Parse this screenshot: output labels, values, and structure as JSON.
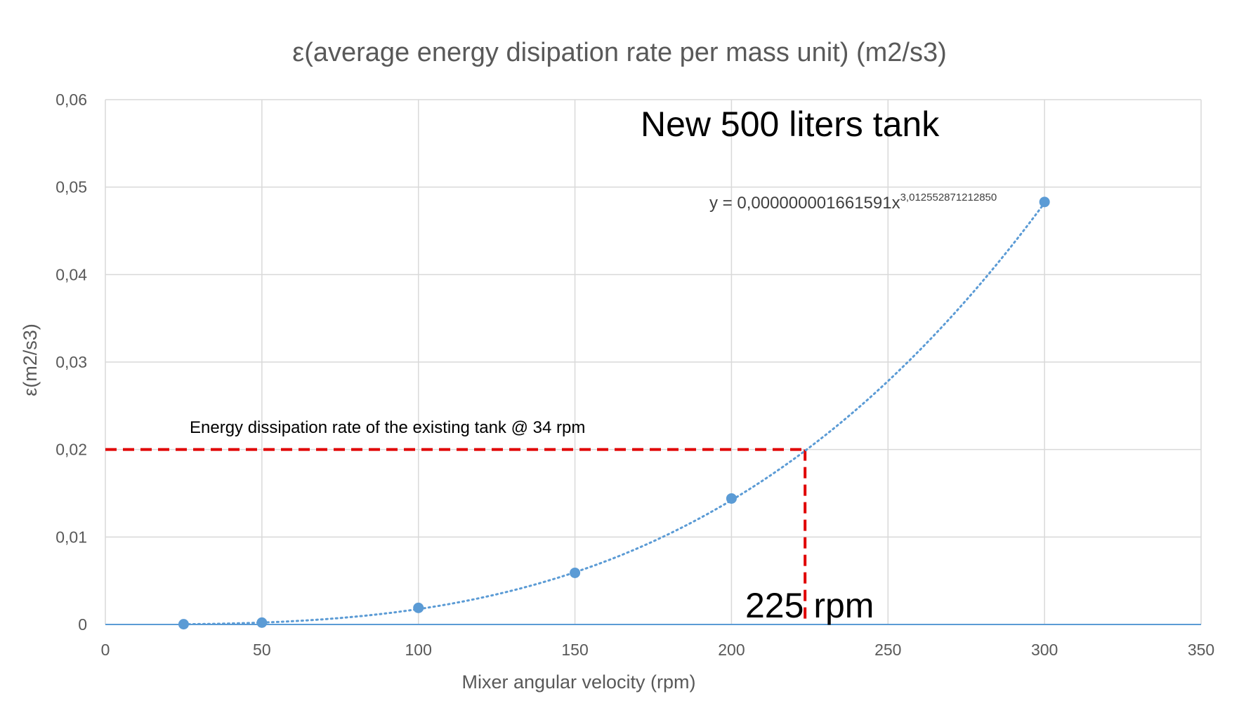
{
  "chart_data": {
    "type": "scatter",
    "title": "ε(average energy disipation rate per mass unit) (m2/s3)",
    "xlabel": "Mixer angular velocity (rpm)",
    "ylabel": "ε(m2/s3)",
    "xlim": [
      0,
      350
    ],
    "ylim": [
      0,
      0.06
    ],
    "x_ticks": [
      0,
      50,
      100,
      150,
      200,
      250,
      300,
      350
    ],
    "x_tick_labels": [
      "0",
      "50",
      "100",
      "150",
      "200",
      "250",
      "300",
      "350"
    ],
    "y_ticks": [
      0,
      0.01,
      0.02,
      0.03,
      0.04,
      0.05,
      0.06
    ],
    "y_tick_labels": [
      "0",
      "0,01",
      "0,02",
      "0,03",
      "0,04",
      "0,05",
      "0,06"
    ],
    "grid": true,
    "series": [
      {
        "x": [
          25,
          50,
          100,
          150,
          200,
          300
        ],
        "y": [
          3e-05,
          0.00021,
          0.0019,
          0.0059,
          0.0144,
          0.0483
        ],
        "color": "#5B9BD5"
      }
    ],
    "trendline": {
      "type": "power",
      "coefficient": 1.661591e-09,
      "exponent": 3.01255287121285,
      "x_range": [
        25,
        300
      ],
      "color": "#5B9BD5",
      "style": "dotted",
      "equation_prefix": "y = 0,000000001661591x",
      "equation_exponent": "3,012552871212850"
    },
    "annotations": {
      "tank_label": "New 500 liters tank",
      "reference_label": "Energy dissipation rate of the existing tank @ 34 rpm",
      "result_label": "225 rpm"
    },
    "reference_lines": {
      "y_value": 0.02,
      "x_value": 223.5,
      "color": "#E00000",
      "style": "dashed"
    },
    "colors": {
      "text": "#595959",
      "grid": "#D9D9D9",
      "x_axis_line": "#5B9BD5"
    }
  }
}
